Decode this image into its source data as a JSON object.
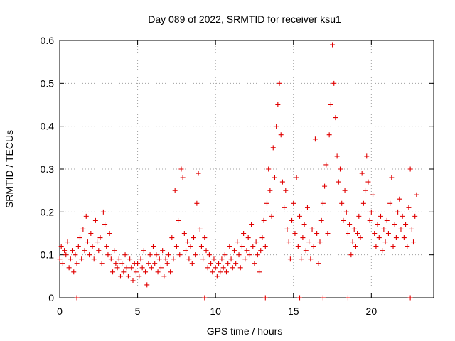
{
  "chart_data": {
    "type": "scatter",
    "title": "Day 089 of 2022, SRMTID for receiver ksu1",
    "xlabel": "GPS time / hours",
    "ylabel": "SRMTID / TECUs",
    "xlim": [
      0,
      24
    ],
    "ylim": [
      0,
      0.6
    ],
    "xticks": [
      0,
      5,
      10,
      15,
      20
    ],
    "xtick_labels": [
      "0",
      "5",
      "10",
      "15",
      "20"
    ],
    "yticks": [
      0,
      0.1,
      0.2,
      0.3,
      0.4,
      0.5,
      0.6
    ],
    "ytick_labels": [
      "0",
      "0.1",
      "0.2",
      "0.3",
      "0.4",
      "0.5",
      "0.6"
    ],
    "grid": true,
    "marker": "plus",
    "color": "#e00000",
    "series": [
      {
        "name": "SRMTID",
        "points": [
          [
            0.0,
            0.09
          ],
          [
            0.1,
            0.12
          ],
          [
            0.2,
            0.08
          ],
          [
            0.3,
            0.11
          ],
          [
            0.4,
            0.1
          ],
          [
            0.5,
            0.13
          ],
          [
            0.6,
            0.07
          ],
          [
            0.7,
            0.09
          ],
          [
            0.8,
            0.11
          ],
          [
            0.9,
            0.06
          ],
          [
            1.0,
            0.1
          ],
          [
            1.1,
            0.08
          ],
          [
            1.2,
            0.12
          ],
          [
            1.3,
            0.14
          ],
          [
            1.4,
            0.09
          ],
          [
            1.5,
            0.16
          ],
          [
            1.6,
            0.11
          ],
          [
            1.7,
            0.19
          ],
          [
            1.8,
            0.13
          ],
          [
            1.9,
            0.1
          ],
          [
            2.0,
            0.15
          ],
          [
            2.1,
            0.12
          ],
          [
            2.2,
            0.09
          ],
          [
            2.3,
            0.18
          ],
          [
            2.4,
            0.13
          ],
          [
            2.5,
            0.11
          ],
          [
            2.6,
            0.14
          ],
          [
            2.7,
            0.08
          ],
          [
            2.8,
            0.2
          ],
          [
            2.9,
            0.17
          ],
          [
            3.0,
            0.12
          ],
          [
            3.1,
            0.1
          ],
          [
            3.2,
            0.15
          ],
          [
            3.3,
            0.09
          ],
          [
            3.4,
            0.06
          ],
          [
            3.5,
            0.11
          ],
          [
            3.6,
            0.08
          ],
          [
            3.7,
            0.07
          ],
          [
            3.8,
            0.09
          ],
          [
            3.9,
            0.05
          ],
          [
            4.0,
            0.08
          ],
          [
            4.1,
            0.06
          ],
          [
            4.2,
            0.1
          ],
          [
            4.3,
            0.07
          ],
          [
            4.4,
            0.05
          ],
          [
            4.5,
            0.09
          ],
          [
            4.6,
            0.07
          ],
          [
            4.7,
            0.04
          ],
          [
            4.8,
            0.08
          ],
          [
            4.9,
            0.06
          ],
          [
            5.0,
            0.08
          ],
          [
            5.1,
            0.05
          ],
          [
            5.2,
            0.09
          ],
          [
            5.3,
            0.07
          ],
          [
            5.4,
            0.11
          ],
          [
            5.5,
            0.06
          ],
          [
            5.6,
            0.03
          ],
          [
            5.7,
            0.08
          ],
          [
            5.8,
            0.1
          ],
          [
            5.9,
            0.07
          ],
          [
            6.0,
            0.12
          ],
          [
            6.1,
            0.08
          ],
          [
            6.2,
            0.1
          ],
          [
            6.3,
            0.06
          ],
          [
            6.4,
            0.09
          ],
          [
            6.5,
            0.07
          ],
          [
            6.6,
            0.11
          ],
          [
            6.7,
            0.05
          ],
          [
            6.8,
            0.09
          ],
          [
            6.9,
            0.08
          ],
          [
            7.0,
            0.1
          ],
          [
            7.1,
            0.06
          ],
          [
            7.2,
            0.14
          ],
          [
            7.3,
            0.09
          ],
          [
            7.4,
            0.25
          ],
          [
            7.5,
            0.12
          ],
          [
            7.6,
            0.18
          ],
          [
            7.7,
            0.1
          ],
          [
            7.8,
            0.3
          ],
          [
            7.9,
            0.28
          ],
          [
            8.0,
            0.15
          ],
          [
            8.1,
            0.11
          ],
          [
            8.2,
            0.13
          ],
          [
            8.3,
            0.09
          ],
          [
            8.4,
            0.12
          ],
          [
            8.5,
            0.08
          ],
          [
            8.6,
            0.14
          ],
          [
            8.7,
            0.1
          ],
          [
            8.8,
            0.22
          ],
          [
            8.9,
            0.29
          ],
          [
            9.0,
            0.16
          ],
          [
            9.1,
            0.12
          ],
          [
            9.2,
            0.09
          ],
          [
            9.3,
            0.14
          ],
          [
            9.4,
            0.11
          ],
          [
            9.5,
            0.07
          ],
          [
            9.6,
            0.1
          ],
          [
            9.7,
            0.08
          ],
          [
            9.8,
            0.06
          ],
          [
            9.9,
            0.09
          ],
          [
            10.0,
            0.07
          ],
          [
            10.1,
            0.05
          ],
          [
            10.2,
            0.08
          ],
          [
            10.3,
            0.06
          ],
          [
            10.4,
            0.09
          ],
          [
            10.5,
            0.07
          ],
          [
            10.6,
            0.1
          ],
          [
            10.7,
            0.06
          ],
          [
            10.8,
            0.08
          ],
          [
            10.9,
            0.12
          ],
          [
            11.0,
            0.09
          ],
          [
            11.1,
            0.07
          ],
          [
            11.2,
            0.11
          ],
          [
            11.3,
            0.08
          ],
          [
            11.4,
            0.13
          ],
          [
            11.5,
            0.1
          ],
          [
            11.6,
            0.07
          ],
          [
            11.7,
            0.12
          ],
          [
            11.8,
            0.15
          ],
          [
            11.9,
            0.09
          ],
          [
            12.0,
            0.11
          ],
          [
            12.1,
            0.14
          ],
          [
            12.2,
            0.1
          ],
          [
            12.3,
            0.17
          ],
          [
            12.4,
            0.12
          ],
          [
            12.5,
            0.08
          ],
          [
            12.6,
            0.13
          ],
          [
            12.7,
            0.1
          ],
          [
            12.8,
            0.06
          ],
          [
            12.9,
            0.11
          ],
          [
            13.0,
            0.14
          ],
          [
            13.1,
            0.18
          ],
          [
            13.2,
            0.12
          ],
          [
            13.3,
            0.22
          ],
          [
            13.4,
            0.3
          ],
          [
            13.5,
            0.25
          ],
          [
            13.6,
            0.19
          ],
          [
            13.7,
            0.35
          ],
          [
            13.8,
            0.28
          ],
          [
            13.9,
            0.4
          ],
          [
            14.0,
            0.45
          ],
          [
            14.1,
            0.5
          ],
          [
            14.2,
            0.38
          ],
          [
            14.3,
            0.27
          ],
          [
            14.4,
            0.21
          ],
          [
            14.5,
            0.25
          ],
          [
            14.6,
            0.16
          ],
          [
            14.7,
            0.13
          ],
          [
            14.8,
            0.09
          ],
          [
            14.9,
            0.18
          ],
          [
            15.0,
            0.22
          ],
          [
            15.1,
            0.15
          ],
          [
            15.2,
            0.28
          ],
          [
            15.3,
            0.12
          ],
          [
            15.4,
            0.19
          ],
          [
            15.5,
            0.09
          ],
          [
            15.6,
            0.14
          ],
          [
            15.7,
            0.17
          ],
          [
            15.8,
            0.11
          ],
          [
            15.9,
            0.21
          ],
          [
            16.0,
            0.13
          ],
          [
            16.1,
            0.09
          ],
          [
            16.2,
            0.16
          ],
          [
            16.3,
            0.12
          ],
          [
            16.4,
            0.37
          ],
          [
            16.5,
            0.15
          ],
          [
            16.6,
            0.08
          ],
          [
            16.7,
            0.13
          ],
          [
            16.8,
            0.18
          ],
          [
            16.9,
            0.22
          ],
          [
            17.0,
            0.26
          ],
          [
            17.1,
            0.31
          ],
          [
            17.2,
            0.15
          ],
          [
            17.3,
            0.38
          ],
          [
            17.4,
            0.45
          ],
          [
            17.5,
            0.59
          ],
          [
            17.6,
            0.5
          ],
          [
            17.7,
            0.42
          ],
          [
            17.8,
            0.33
          ],
          [
            17.9,
            0.27
          ],
          [
            18.0,
            0.3
          ],
          [
            18.1,
            0.22
          ],
          [
            18.2,
            0.18
          ],
          [
            18.3,
            0.25
          ],
          [
            18.4,
            0.2
          ],
          [
            18.5,
            0.15
          ],
          [
            18.6,
            0.17
          ],
          [
            18.7,
            0.1
          ],
          [
            18.8,
            0.13
          ],
          [
            18.9,
            0.16
          ],
          [
            19.0,
            0.12
          ],
          [
            19.1,
            0.15
          ],
          [
            19.2,
            0.19
          ],
          [
            19.3,
            0.14
          ],
          [
            19.4,
            0.29
          ],
          [
            19.5,
            0.22
          ],
          [
            19.6,
            0.25
          ],
          [
            19.7,
            0.33
          ],
          [
            19.8,
            0.27
          ],
          [
            19.9,
            0.18
          ],
          [
            20.0,
            0.2
          ],
          [
            20.1,
            0.24
          ],
          [
            20.2,
            0.15
          ],
          [
            20.3,
            0.12
          ],
          [
            20.4,
            0.17
          ],
          [
            20.5,
            0.14
          ],
          [
            20.6,
            0.19
          ],
          [
            20.7,
            0.11
          ],
          [
            20.8,
            0.16
          ],
          [
            20.9,
            0.13
          ],
          [
            21.0,
            0.18
          ],
          [
            21.1,
            0.15
          ],
          [
            21.2,
            0.22
          ],
          [
            21.3,
            0.28
          ],
          [
            21.4,
            0.12
          ],
          [
            21.5,
            0.17
          ],
          [
            21.6,
            0.14
          ],
          [
            21.7,
            0.2
          ],
          [
            21.8,
            0.23
          ],
          [
            21.9,
            0.16
          ],
          [
            22.0,
            0.19
          ],
          [
            22.1,
            0.14
          ],
          [
            22.2,
            0.17
          ],
          [
            22.3,
            0.12
          ],
          [
            22.4,
            0.21
          ],
          [
            22.5,
            0.3
          ],
          [
            22.6,
            0.16
          ],
          [
            22.7,
            0.13
          ],
          [
            22.8,
            0.19
          ],
          [
            22.9,
            0.24
          ]
        ]
      },
      {
        "name": "zero-markers",
        "points": [
          [
            1.1,
            0.0
          ],
          [
            9.3,
            0.0
          ],
          [
            13.2,
            0.0
          ],
          [
            15.4,
            0.0
          ],
          [
            16.9,
            0.0
          ],
          [
            18.5,
            0.0
          ],
          [
            22.5,
            0.0
          ]
        ]
      }
    ]
  }
}
